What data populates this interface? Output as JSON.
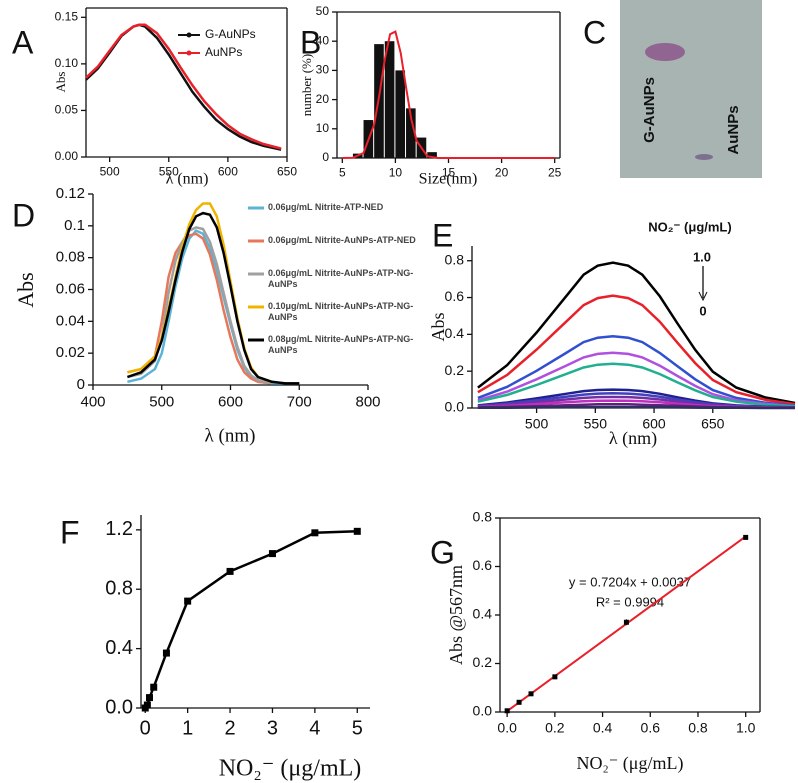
{
  "chart_data": [
    {
      "type": "line",
      "label": "A",
      "xlabel": "λ (nm)",
      "ylabel": "Abs",
      "legend": "upper right",
      "xlim": [
        480,
        650
      ],
      "ylim": [
        0,
        0.16
      ],
      "xticks": [
        500,
        550,
        600,
        650
      ],
      "yticks": [
        {
          "value": 0,
          "label": "0.00"
        },
        {
          "value": 0.05,
          "label": "0.05"
        },
        {
          "value": 0.1,
          "label": "0.10"
        },
        {
          "value": 0.15,
          "label": "0.15"
        }
      ],
      "x": [
        480,
        490,
        500,
        510,
        520,
        525,
        530,
        540,
        550,
        560,
        570,
        580,
        590,
        600,
        610,
        620,
        630,
        645
      ],
      "series": [
        {
          "name": "G-AuNPs",
          "color": "#111111",
          "values": [
            0.083,
            0.095,
            0.112,
            0.13,
            0.14,
            0.142,
            0.14,
            0.128,
            0.11,
            0.09,
            0.07,
            0.054,
            0.04,
            0.03,
            0.022,
            0.016,
            0.012,
            0.008
          ]
        },
        {
          "name": "AuNPs",
          "color": "#e8202a",
          "values": [
            0.085,
            0.097,
            0.114,
            0.131,
            0.14,
            0.142,
            0.142,
            0.133,
            0.116,
            0.096,
            0.077,
            0.06,
            0.046,
            0.034,
            0.025,
            0.019,
            0.014,
            0.009
          ]
        }
      ]
    },
    {
      "type": "histogram",
      "label": "B",
      "xlabel": "Size(nm)",
      "ylabel": "number (%)",
      "xlim": [
        4.5,
        25.5
      ],
      "ylim": [
        0,
        50
      ],
      "xticks": [
        5,
        10,
        15,
        20,
        25
      ],
      "yticks": [
        0,
        10,
        20,
        30,
        40,
        50
      ],
      "bins": [
        6,
        7,
        8,
        9,
        10,
        11,
        12,
        13,
        14
      ],
      "counts": [
        1.5,
        13,
        39,
        40,
        30,
        17,
        7,
        2
      ],
      "color": "#111111",
      "fit": {
        "color": "#e8202a",
        "x": [
          5,
          6,
          7,
          8,
          8.5,
          9,
          9.5,
          10,
          10.5,
          11,
          11.5,
          12,
          13,
          14,
          15,
          17,
          20,
          25
        ],
        "values": [
          0,
          0.1,
          1.7,
          11.5,
          21.9,
          33.8,
          42.4,
          43.3,
          36,
          24.3,
          13.3,
          5.9,
          0.6,
          0,
          0,
          0,
          0,
          0
        ]
      }
    },
    {
      "type": "line",
      "label": "D",
      "xlabel": "λ (nm)",
      "ylabel": "Abs",
      "legend": "right",
      "xlim": [
        400,
        800
      ],
      "ylim": [
        0,
        0.12
      ],
      "xticks": [
        400,
        500,
        600,
        700,
        800
      ],
      "yticks": [
        0,
        0.02,
        0.04,
        0.06,
        0.08,
        0.1,
        0.12
      ],
      "x": [
        450,
        470,
        490,
        500,
        510,
        520,
        530,
        540,
        550,
        560,
        570,
        580,
        590,
        600,
        610,
        620,
        630,
        640,
        660,
        680,
        700
      ],
      "series": [
        {
          "name": "0.06μg/mL Nitrite-ATP-NED",
          "color": "#5bb4d8",
          "values": [
            0.002,
            0.004,
            0.01,
            0.02,
            0.04,
            0.062,
            0.08,
            0.092,
            0.097,
            0.095,
            0.086,
            0.072,
            0.055,
            0.038,
            0.022,
            0.011,
            0.005,
            0.002,
            0.001,
            0.001,
            0.001
          ]
        },
        {
          "name": "0.06μg/mL Nitrite-AuNPs-ATP-NED",
          "color": "#e8775a",
          "values": [
            0.008,
            0.01,
            0.018,
            0.04,
            0.068,
            0.083,
            0.09,
            0.094,
            0.095,
            0.092,
            0.082,
            0.066,
            0.047,
            0.03,
            0.016,
            0.008,
            0.004,
            0.002,
            0.001,
            null,
            null
          ]
        },
        {
          "name": "0.06μg/mL Nitrite-AuNPs-ATP-NG-AuNPs",
          "color": "#a0a0a0",
          "values": [
            0.005,
            0.007,
            0.015,
            0.03,
            0.058,
            0.078,
            0.09,
            0.097,
            0.099,
            0.098,
            0.09,
            0.076,
            0.058,
            0.04,
            0.024,
            0.012,
            0.006,
            0.003,
            0.001,
            null,
            null
          ]
        },
        {
          "name": "0.10μg/mL Nitrite-AuNPs-ATP-NG-AuNPs",
          "color": "#f0b400",
          "values": [
            0.008,
            0.01,
            0.018,
            0.03,
            0.048,
            0.068,
            0.087,
            0.101,
            0.11,
            0.114,
            0.114,
            0.106,
            0.088,
            0.065,
            0.042,
            0.023,
            0.011,
            0.005,
            0.002,
            null,
            null
          ]
        },
        {
          "name": "0.08μg/mL Nitrite-AuNPs-ATP-NG-AuNPs",
          "color": "#000000",
          "values": [
            0.005,
            0.008,
            0.016,
            0.028,
            0.046,
            0.066,
            0.084,
            0.098,
            0.106,
            0.108,
            0.107,
            0.099,
            0.083,
            0.062,
            0.04,
            0.022,
            0.01,
            0.005,
            0.002,
            0.001,
            0.001
          ]
        }
      ]
    },
    {
      "type": "line",
      "label": "E",
      "xlabel": "λ (nm)",
      "ylabel": "Abs",
      "annotations": [
        "NO₂⁻ (μg/mL)",
        "1.0",
        "0"
      ],
      "xlim": [
        445,
        720
      ],
      "ylim": [
        0,
        0.88
      ],
      "xticks": [
        500,
        550,
        600,
        650
      ],
      "yticks": [
        {
          "value": 0,
          "label": "0.0"
        },
        0.2,
        0.4,
        0.6,
        0.8
      ],
      "x": [
        450,
        475,
        500,
        525,
        540,
        552,
        565,
        578,
        590,
        605,
        620,
        635,
        650,
        670,
        695,
        720
      ],
      "series": [
        {
          "color": "#000000",
          "values": [
            0.111,
            0.233,
            0.41,
            0.606,
            0.724,
            0.773,
            0.79,
            0.773,
            0.724,
            0.606,
            0.459,
            0.316,
            0.197,
            0.111,
            0.057,
            0.027
          ]
        },
        {
          "color": "#e8202a",
          "values": [
            0.086,
            0.18,
            0.317,
            0.468,
            0.559,
            0.597,
            0.61,
            0.597,
            0.559,
            0.468,
            0.354,
            0.244,
            0.152,
            0.086,
            0.044,
            0.021
          ]
        },
        {
          "color": "#3050d0",
          "values": [
            0.055,
            0.115,
            0.202,
            0.299,
            0.358,
            0.382,
            0.39,
            0.382,
            0.358,
            0.299,
            0.227,
            0.156,
            0.097,
            0.055,
            0.028,
            0.013
          ]
        },
        {
          "color": "#b050e0",
          "values": [
            0.042,
            0.089,
            0.156,
            0.23,
            0.275,
            0.294,
            0.3,
            0.294,
            0.275,
            0.23,
            0.174,
            0.12,
            0.075,
            0.042,
            0.022,
            0.01
          ]
        },
        {
          "color": "#20b090",
          "values": [
            0.034,
            0.071,
            0.125,
            0.184,
            0.22,
            0.235,
            0.24,
            0.235,
            0.22,
            0.184,
            0.139,
            0.096,
            0.06,
            0.034,
            0.017,
            0.008
          ]
        },
        {
          "color": "#202090",
          "values": [
            0.014,
            0.03,
            0.052,
            0.077,
            0.092,
            0.098,
            0.1,
            0.098,
            0.092,
            0.077,
            0.058,
            0.04,
            0.025,
            0.014,
            0.007,
            0.003
          ]
        },
        {
          "color": "#4040c0",
          "values": [
            0.011,
            0.024,
            0.042,
            0.061,
            0.073,
            0.078,
            0.08,
            0.078,
            0.073,
            0.061,
            0.046,
            0.032,
            0.02,
            0.011,
            0.006,
            0.003
          ]
        },
        {
          "color": "#7030a0",
          "values": [
            0.008,
            0.018,
            0.031,
            0.046,
            0.055,
            0.059,
            0.06,
            0.059,
            0.055,
            0.046,
            0.035,
            0.024,
            0.015,
            0.008,
            0.004,
            0.002
          ]
        },
        {
          "color": "#c030c0",
          "values": [
            0.006,
            0.012,
            0.021,
            0.031,
            0.037,
            0.039,
            0.04,
            0.039,
            0.037,
            0.031,
            0.023,
            0.016,
            0.01,
            0.006,
            0.003,
            0.001
          ]
        },
        {
          "color": "#602080",
          "values": [
            0.003,
            0.006,
            0.01,
            0.015,
            0.018,
            0.02,
            0.02,
            0.02,
            0.018,
            0.015,
            0.012,
            0.008,
            0.005,
            0.003,
            0.001,
            0.001
          ]
        },
        {
          "color": "#303060",
          "values": [
            0.001,
            0.001,
            0.003,
            0.004,
            0.005,
            0.005,
            0.005,
            0.005,
            0.005,
            0.004,
            0.003,
            0.002,
            0.001,
            0.001,
            0,
            0
          ]
        }
      ]
    },
    {
      "type": "line",
      "label": "F",
      "xlabel": "NO₂⁻ (μg/mL)",
      "markers": true,
      "xlim": [
        -0.1,
        5.3
      ],
      "ylim": [
        0,
        1.3
      ],
      "xticks": [
        0,
        1,
        2,
        3,
        4,
        5
      ],
      "yticks": [
        {
          "value": 0,
          "label": "0.0"
        },
        0.4,
        0.8,
        1.2
      ],
      "x": [
        0,
        0.05,
        0.1,
        0.2,
        0.5,
        1,
        2,
        3,
        4,
        5
      ],
      "series": [
        {
          "color": "#000000",
          "values": [
            0,
            0.02,
            0.07,
            0.14,
            0.37,
            0.72,
            0.92,
            1.04,
            1.18,
            1.19
          ]
        }
      ]
    },
    {
      "type": "scatter",
      "label": "G",
      "xlabel": "NO₂⁻ (μg/mL)",
      "ylabel": "Abs @567nm",
      "annotations": [
        "y = 0.7204x + 0.0037",
        "R² = 0.9994"
      ],
      "xlim": [
        -0.03,
        1.06
      ],
      "ylim": [
        0,
        0.8
      ],
      "xticks": [
        {
          "value": 0,
          "label": "0.0"
        },
        0.2,
        0.4,
        0.6,
        0.8,
        {
          "value": 1,
          "label": "1.0"
        }
      ],
      "yticks": [
        {
          "value": 0,
          "label": "0.0"
        },
        0.2,
        0.4,
        0.6,
        0.8
      ],
      "x": [
        0,
        0.05,
        0.1,
        0.2,
        0.5,
        1
      ],
      "values": [
        0.005,
        0.04,
        0.075,
        0.145,
        0.37,
        0.72
      ],
      "errors": [
        0.003,
        0.004,
        0.006,
        0.006,
        0.012,
        0.008
      ],
      "color": "#000000",
      "fit": {
        "color": "#e8202a",
        "x": [
          0,
          1
        ],
        "values": [
          0.0037,
          0.7241
        ]
      }
    }
  ],
  "photo": {
    "letter": "C",
    "labels": [
      "G-AuNPs",
      "AuNPs"
    ]
  }
}
